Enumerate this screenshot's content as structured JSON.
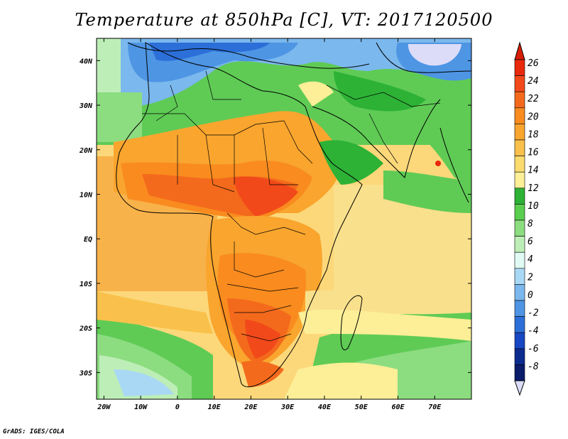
{
  "title": "Temperature at 850hPa [C], VT: 2017120500",
  "credit": "GrADS: IGES/COLA",
  "map": {
    "region": "Africa, Arabia and western Indian Ocean",
    "lon_range": [
      -22,
      80
    ],
    "lat_range": [
      -36,
      45
    ],
    "lat_ticks": [
      {
        "value": 40,
        "label": "40N"
      },
      {
        "value": 30,
        "label": "30N"
      },
      {
        "value": 20,
        "label": "20N"
      },
      {
        "value": 10,
        "label": "10N"
      },
      {
        "value": 0,
        "label": "EQ"
      },
      {
        "value": -10,
        "label": "10S"
      },
      {
        "value": -20,
        "label": "20S"
      },
      {
        "value": -30,
        "label": "30S"
      }
    ],
    "lon_ticks": [
      {
        "value": -20,
        "label": "20W"
      },
      {
        "value": -10,
        "label": "10W"
      },
      {
        "value": 0,
        "label": "0"
      },
      {
        "value": 10,
        "label": "10E"
      },
      {
        "value": 20,
        "label": "20E"
      },
      {
        "value": 30,
        "label": "30E"
      },
      {
        "value": 40,
        "label": "40E"
      },
      {
        "value": 50,
        "label": "50E"
      },
      {
        "value": 60,
        "label": "60E"
      },
      {
        "value": 70,
        "label": "70E"
      }
    ]
  },
  "colorbar": {
    "labels": [
      "26",
      "24",
      "22",
      "20",
      "18",
      "16",
      "14",
      "12",
      "10",
      "8",
      "6",
      "4",
      "2",
      "0",
      "-2",
      "-4",
      "-6",
      "-8"
    ],
    "colors_top_to_bottom": [
      "#e8290b",
      "#f2491a",
      "#f46a1c",
      "#f98b1f",
      "#f9a52e",
      "#f9c14b",
      "#fbdb6e",
      "#fcef97",
      "#2db236",
      "#5ace4e",
      "#8cdc80",
      "#bdeeb7",
      "#e1faf4",
      "#a9d8f4",
      "#7bb8ed",
      "#4e95e4",
      "#2c6fd8",
      "#1747c2",
      "#0c2b8e",
      "#0a1c6a"
    ],
    "top_arrow_color": "#d81e06",
    "bottom_arrow_color": "#dcdcf8"
  }
}
